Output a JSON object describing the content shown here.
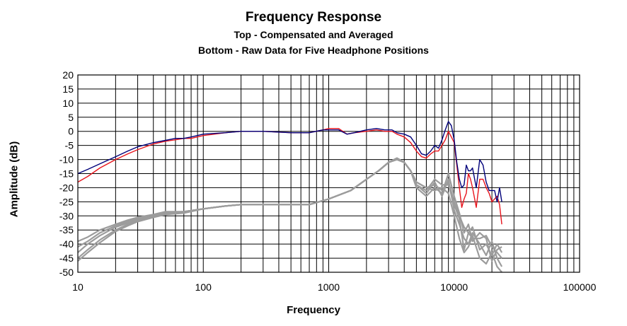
{
  "chart_data": {
    "type": "line",
    "title": "Frequency Response",
    "subtitle_top": "Top -  Compensated and Averaged",
    "subtitle_bottom": "Bottom - Raw Data for Five Headphone Positions",
    "xlabel": "Frequency",
    "ylabel": "Amplitude (dB)",
    "x_scale": "log",
    "xlim": [
      10,
      100000
    ],
    "ylim": [
      -50,
      20
    ],
    "x_ticks": [
      "10",
      "100",
      "1000",
      "10000",
      "100000"
    ],
    "y_ticks": [
      "20",
      "15",
      "10",
      "5",
      "0",
      "-5",
      "-10",
      "-15",
      "-20",
      "-25",
      "-30",
      "-35",
      "-40",
      "-45",
      "-50"
    ],
    "grid": true,
    "legend": "none",
    "colors": {
      "blue": "#00007a",
      "red": "#e8141c",
      "gray": "#9c9c9c"
    },
    "series": [
      {
        "color": "blue",
        "x": [
          10,
          12,
          15,
          20,
          25,
          30,
          40,
          50,
          60,
          70,
          80,
          100,
          150,
          200,
          300,
          500,
          700,
          900,
          1000,
          1200,
          1400,
          1600,
          2000,
          2400,
          2800,
          3200,
          3500,
          4000,
          4500,
          5000,
          5500,
          6000,
          6500,
          7000,
          7500,
          8000,
          8500,
          9000,
          9500,
          10000,
          10500,
          11000,
          11500,
          12000,
          12500,
          13000,
          13500,
          14000,
          15000,
          16000,
          17000,
          18000,
          19000,
          20000,
          21000,
          22000,
          23000,
          24000
        ],
        "values": [
          -15,
          -13.5,
          -11.5,
          -9,
          -7,
          -5.5,
          -4,
          -3.2,
          -2.5,
          -2.5,
          -2,
          -1,
          -0.5,
          0,
          0,
          -0.5,
          -0.5,
          0.5,
          0.5,
          0.5,
          -1,
          -0.5,
          0.5,
          1,
          0.5,
          0.5,
          -0.5,
          -1,
          -2,
          -5,
          -8,
          -8.5,
          -7,
          -5,
          -6,
          -3,
          0.5,
          3.5,
          2,
          -3,
          -11,
          -17,
          -20,
          -19,
          -12,
          -14,
          -14,
          -13,
          -20,
          -10,
          -12,
          -18,
          -21,
          -21,
          -21,
          -25,
          -20,
          -25
        ]
      },
      {
        "color": "red",
        "x": [
          10,
          12,
          15,
          20,
          25,
          30,
          40,
          50,
          60,
          70,
          80,
          100,
          150,
          200,
          300,
          500,
          700,
          900,
          1000,
          1200,
          1400,
          1600,
          2000,
          2400,
          2800,
          3200,
          3500,
          4000,
          4500,
          5000,
          5500,
          6000,
          6500,
          7000,
          7500,
          8000,
          8500,
          9000,
          9500,
          10000,
          10500,
          11000,
          11500,
          12000,
          12500,
          13000,
          13500,
          14000,
          15000,
          16000,
          17000,
          18000,
          19000,
          20000,
          21000,
          22000,
          23000,
          24000
        ],
        "values": [
          -18,
          -16,
          -13,
          -10,
          -8,
          -6.5,
          -4.5,
          -3.5,
          -3,
          -2.5,
          -2.5,
          -1.5,
          -0.5,
          0,
          0,
          -0.5,
          -0.5,
          0.5,
          1,
          1,
          -1,
          -0.5,
          0,
          0.5,
          0,
          0,
          -1,
          -2,
          -4,
          -7,
          -9,
          -9.5,
          -8,
          -7,
          -7,
          -5,
          -3,
          0,
          -2,
          -4,
          -12,
          -20,
          -27,
          -24,
          -22,
          -15,
          -17,
          -20,
          -27,
          -17,
          -17,
          -20,
          -22,
          -25,
          -24,
          -23,
          -26,
          -33
        ]
      },
      {
        "color": "gray",
        "x": [
          10,
          12,
          15,
          20,
          25,
          30,
          40,
          50,
          70,
          100,
          150,
          200,
          300,
          500,
          700,
          1000,
          1500,
          2000,
          2500,
          3000,
          3500,
          4000,
          4500,
          5000,
          6000,
          7000,
          8000,
          9000,
          10000,
          11000,
          12000,
          13000,
          14000,
          16000,
          18000,
          20000,
          22000,
          24000
        ],
        "values": [
          -45,
          -42,
          -38.5,
          -35,
          -33,
          -32,
          -30.5,
          -29.5,
          -29,
          -27.5,
          -26.5,
          -26,
          -26,
          -26,
          -26,
          -24,
          -21,
          -17,
          -14,
          -11,
          -10,
          -11,
          -14,
          -18,
          -20,
          -19,
          -21,
          -18,
          -25,
          -30,
          -34,
          -36,
          -38,
          -38,
          -37,
          -41,
          -43,
          -45
        ]
      },
      {
        "color": "gray",
        "x": [
          10,
          12,
          15,
          20,
          25,
          30,
          40,
          50,
          70,
          100,
          150,
          200,
          300,
          500,
          700,
          1000,
          1500,
          2000,
          2500,
          3000,
          3500,
          4000,
          4500,
          5000,
          6000,
          7000,
          8000,
          9000,
          10000,
          11000,
          12000,
          13000,
          14000,
          16000,
          18000,
          20000,
          22000,
          24000
        ],
        "values": [
          -43,
          -40,
          -37,
          -34,
          -32.5,
          -31.5,
          -30,
          -29,
          -28.5,
          -27.5,
          -26.5,
          -26,
          -26,
          -26,
          -26,
          -24,
          -21,
          -17,
          -14,
          -11,
          -9.5,
          -11,
          -14,
          -19,
          -22,
          -18,
          -23,
          -17,
          -28,
          -33,
          -38,
          -40,
          -36,
          -40,
          -44,
          -39,
          -45,
          -48
        ]
      },
      {
        "color": "gray",
        "x": [
          10,
          12,
          15,
          20,
          25,
          30,
          40,
          50,
          70,
          100,
          150,
          200,
          300,
          500,
          700,
          1000,
          1500,
          2000,
          2500,
          3000,
          3500,
          4000,
          4500,
          5000,
          6000,
          7000,
          8000,
          9000,
          10000,
          11000,
          12000,
          13000,
          14000,
          16000,
          18000,
          20000,
          22000,
          24000
        ],
        "values": [
          -41,
          -39,
          -36,
          -33.5,
          -32,
          -31,
          -30,
          -29,
          -28.5,
          -27.5,
          -26.5,
          -26,
          -26,
          -26,
          -26,
          -24,
          -21,
          -17,
          -14,
          -11,
          -10,
          -11,
          -14,
          -19,
          -21,
          -17,
          -19,
          -19,
          -26,
          -31,
          -42,
          -36,
          -34,
          -42,
          -40,
          -44,
          -40,
          -43
        ]
      },
      {
        "color": "gray",
        "x": [
          10,
          12,
          15,
          20,
          25,
          30,
          40,
          50,
          70,
          100,
          150,
          200,
          300,
          500,
          700,
          1000,
          1500,
          2000,
          2500,
          3000,
          3500,
          4000,
          4500,
          5000,
          6000,
          7000,
          8000,
          9000,
          10000,
          11000,
          12000,
          13000,
          14000,
          16000,
          18000,
          20000,
          22000,
          24000
        ],
        "values": [
          -39,
          -37.5,
          -35,
          -33,
          -31.5,
          -30.5,
          -29.5,
          -28.5,
          -28.5,
          -27.5,
          -26.5,
          -26,
          -26,
          -26,
          -26,
          -24,
          -21,
          -17,
          -14,
          -11,
          -9.5,
          -11,
          -14,
          -20,
          -23,
          -20,
          -22,
          -15,
          -23,
          -29,
          -36,
          -33,
          -39,
          -36,
          -38,
          -46,
          -42,
          -41
        ]
      },
      {
        "color": "gray",
        "x": [
          10,
          12,
          15,
          20,
          25,
          30,
          40,
          50,
          70,
          100,
          150,
          200,
          300,
          500,
          700,
          1000,
          1500,
          2000,
          2500,
          3000,
          3500,
          4000,
          4500,
          5000,
          6000,
          7000,
          8000,
          9000,
          10000,
          11000,
          12000,
          13000,
          14000,
          16000,
          18000,
          20000,
          22000,
          24000
        ],
        "values": [
          -46,
          -43,
          -39.5,
          -35.5,
          -33.5,
          -32,
          -30.5,
          -29.5,
          -28.5,
          -27.5,
          -26.5,
          -26,
          -26,
          -26,
          -26,
          -24,
          -21,
          -17,
          -14,
          -11,
          -10,
          -11,
          -14,
          -18,
          -20,
          -21,
          -20,
          -22,
          -30,
          -38,
          -43,
          -41,
          -37,
          -45,
          -47,
          -43,
          -48,
          -50
        ]
      }
    ]
  }
}
